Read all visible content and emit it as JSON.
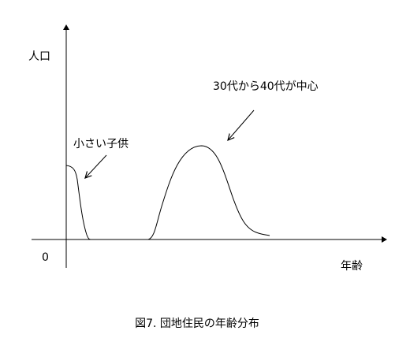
{
  "axes": {
    "y_label": "人口",
    "origin_label": "0",
    "x_label": "年齢"
  },
  "annotations": [
    {
      "text": "小さい子供"
    },
    {
      "text": "30代から40代が中心"
    }
  ],
  "caption": "図7. 団地住民の年齢分布"
}
